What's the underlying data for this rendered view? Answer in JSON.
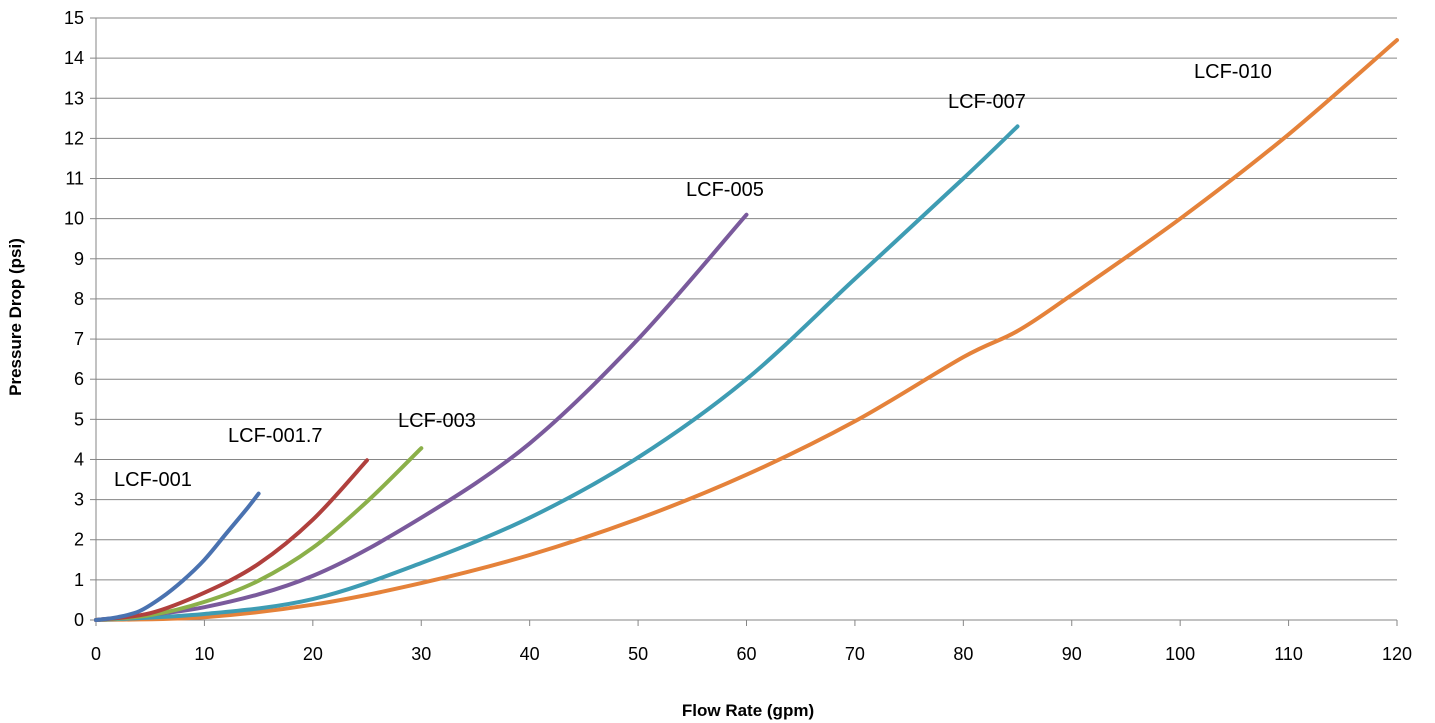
{
  "chart_data": {
    "type": "line",
    "title": "",
    "xlabel": "Flow Rate (gpm)",
    "ylabel": "Pressure Drop (psi)",
    "xlim": [
      0,
      120
    ],
    "ylim": [
      0,
      15
    ],
    "xticks": [
      0,
      10,
      20,
      30,
      40,
      50,
      60,
      70,
      80,
      90,
      100,
      110,
      120
    ],
    "yticks": [
      0,
      1,
      2,
      3,
      4,
      5,
      6,
      7,
      8,
      9,
      10,
      11,
      12,
      13,
      14,
      15
    ],
    "grid": "horizontal",
    "legend": "none",
    "series": [
      {
        "name": "LCF-001",
        "color": "#4A72B0",
        "points": [
          [
            0,
            0
          ],
          [
            2,
            0.07
          ],
          [
            4,
            0.22
          ],
          [
            6,
            0.55
          ],
          [
            8,
            0.98
          ],
          [
            10,
            1.5
          ],
          [
            12,
            2.15
          ],
          [
            14,
            2.8
          ],
          [
            15,
            3.15
          ]
        ]
      },
      {
        "name": "LCF-001.7",
        "color": "#B0403D",
        "points": [
          [
            0,
            0
          ],
          [
            5,
            0.17
          ],
          [
            10,
            0.68
          ],
          [
            15,
            1.4
          ],
          [
            20,
            2.5
          ],
          [
            25,
            3.98
          ]
        ]
      },
      {
        "name": "LCF-003",
        "color": "#8BB04A",
        "points": [
          [
            0,
            0
          ],
          [
            5,
            0.12
          ],
          [
            10,
            0.45
          ],
          [
            15,
            0.98
          ],
          [
            20,
            1.8
          ],
          [
            25,
            2.95
          ],
          [
            30,
            4.28
          ]
        ]
      },
      {
        "name": "LCF-005",
        "color": "#7A5A9C",
        "points": [
          [
            0,
            0
          ],
          [
            10,
            0.32
          ],
          [
            20,
            1.1
          ],
          [
            30,
            2.55
          ],
          [
            40,
            4.4
          ],
          [
            50,
            7.0
          ],
          [
            60,
            10.1
          ]
        ]
      },
      {
        "name": "LCF-007",
        "color": "#3E9CB3",
        "points": [
          [
            0,
            0
          ],
          [
            10,
            0.15
          ],
          [
            20,
            0.52
          ],
          [
            30,
            1.42
          ],
          [
            40,
            2.55
          ],
          [
            50,
            4.05
          ],
          [
            60,
            6.0
          ],
          [
            70,
            8.5
          ],
          [
            80,
            11.0
          ],
          [
            85,
            12.3
          ]
        ]
      },
      {
        "name": "LCF-010",
        "color": "#E5823A",
        "points": [
          [
            0,
            0
          ],
          [
            10,
            0.07
          ],
          [
            20,
            0.38
          ],
          [
            30,
            0.92
          ],
          [
            40,
            1.62
          ],
          [
            50,
            2.52
          ],
          [
            60,
            3.62
          ],
          [
            70,
            4.95
          ],
          [
            80,
            6.55
          ],
          [
            85,
            7.2
          ],
          [
            90,
            8.1
          ],
          [
            100,
            10.0
          ],
          [
            110,
            12.1
          ],
          [
            120,
            14.45
          ]
        ]
      }
    ]
  }
}
